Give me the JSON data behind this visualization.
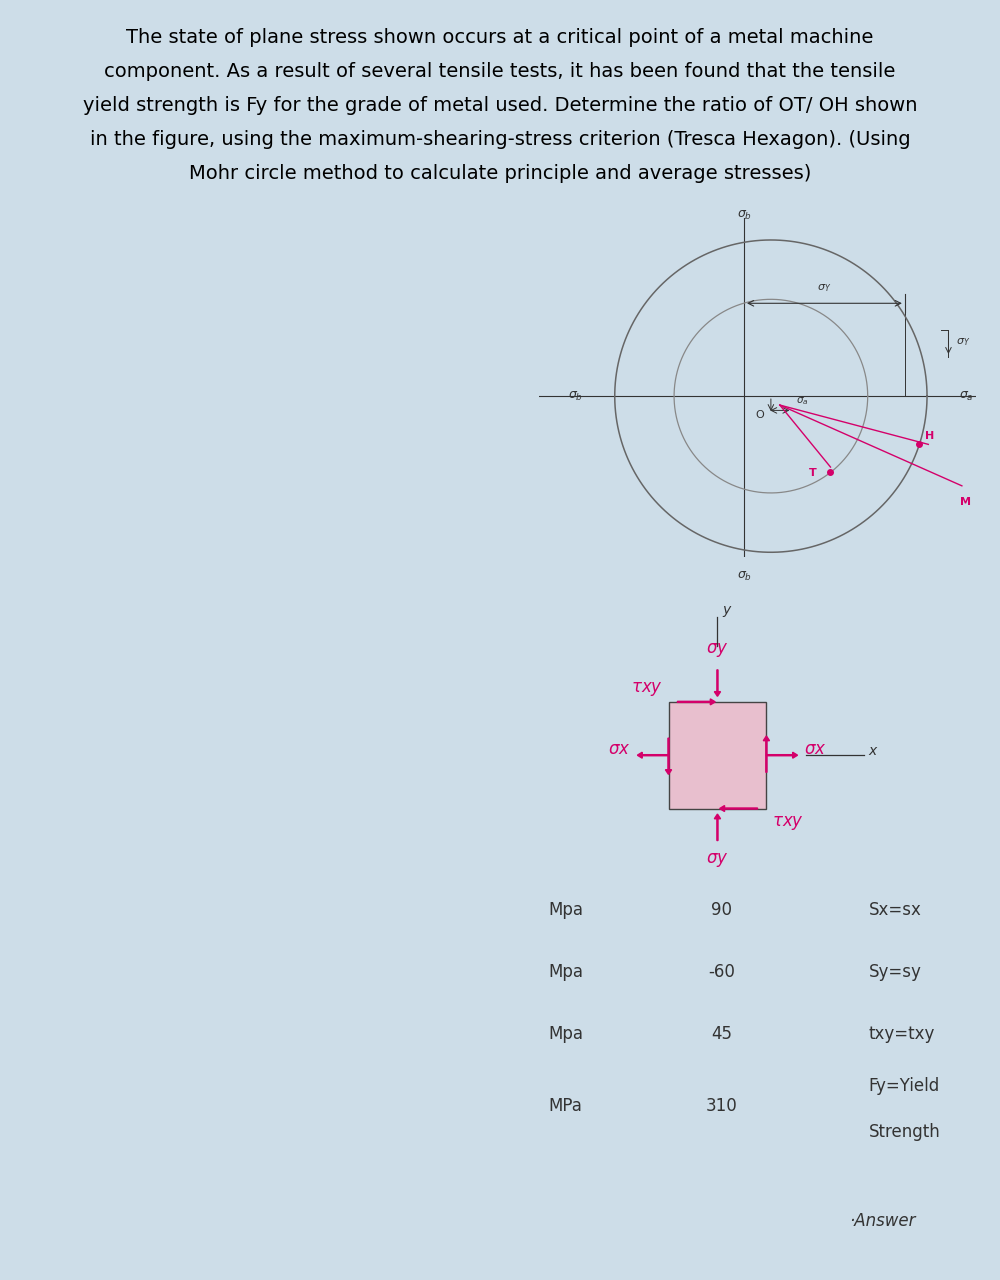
{
  "title": "The state of plane stress shown occurs at a critical point of a metal machine\ncomponent. As a result of several tensile tests, it has been found that the tensile\nyield strength is Fy for the grade of metal used. Determine the ratio of OT/ OH shown\nin the figure, using the maximum-shearing-stress criterion (Tresca Hexagon). (Using\nMohr circle method to calculate principle and average stresses)",
  "bg_color": "#cddde8",
  "panel_bg": "#ffffff",
  "pink_color": "#d4006a",
  "dark_color": "#333333",
  "box_fill": "#e8bfce",
  "title_fontsize": 13.5,
  "sx": 90,
  "sy": -60,
  "txy": 45,
  "Fy": 310,
  "table_rows": [
    [
      "Mpa",
      "90",
      "Sx=sx"
    ],
    [
      "Mpa",
      "-60",
      "Sy=sy"
    ],
    [
      "Mpa",
      "45",
      "txy=txy"
    ],
    [
      "MPa",
      "310",
      "Fy=Yield\nStrength"
    ]
  ],
  "answer_text": "·Answer"
}
